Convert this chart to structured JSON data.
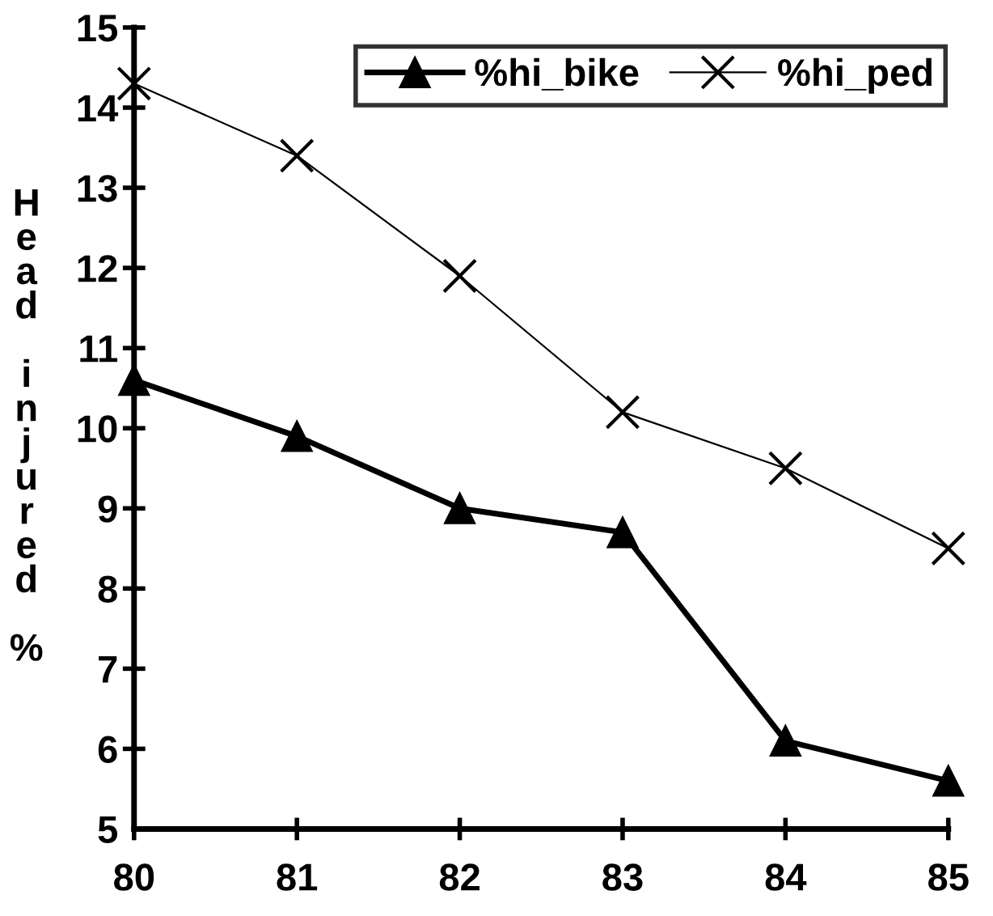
{
  "chart_data": {
    "type": "line",
    "ylabel": "Head injured %",
    "x": [
      80,
      81,
      82,
      83,
      84,
      85
    ],
    "xlim": [
      80,
      85
    ],
    "xticks": [
      80,
      81,
      82,
      83,
      84,
      85
    ],
    "ylim": [
      5,
      15
    ],
    "yticks": [
      5,
      6,
      7,
      8,
      9,
      10,
      11,
      12,
      13,
      14,
      15
    ],
    "series": [
      {
        "name": "%hi_bike",
        "color": "#000000",
        "marker": "triangle",
        "values": [
          10.6,
          9.9,
          9.0,
          8.7,
          6.1,
          5.6
        ]
      },
      {
        "name": "%hi_ped",
        "color": "#000000",
        "marker": "cross",
        "values": [
          14.3,
          13.4,
          11.9,
          10.2,
          9.5,
          8.5
        ]
      }
    ],
    "legend": "top right",
    "grid": false,
    "line_style": "solid"
  }
}
